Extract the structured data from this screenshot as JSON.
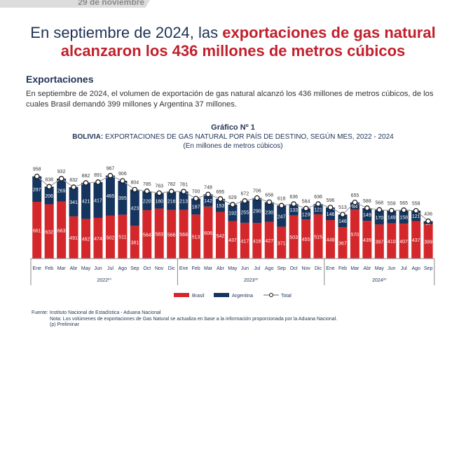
{
  "header": {
    "date": "29 de noviembre"
  },
  "title": {
    "part1": "En septiembre de 2024, las ",
    "part2": "exportaciones de gas natural",
    "part3": "alcanzaron los 436 millones de metros cúbicos"
  },
  "section": {
    "heading": "Exportaciones",
    "text": "En septiembre de 2024, el volumen de exportación de gas natural alcanzó los 436 millones de metros cúbicos, de los cuales Brasil demandó 399 millones y Argentina 37 millones."
  },
  "chart_data": {
    "type": "bar",
    "stacked": true,
    "label": "Gráfico Nº 1",
    "title_bold": "BOLIVIA:",
    "title": "EXPORTACIONES DE GAS NATURAL POR PAÍS DE DESTINO, SEGÚN MES, 2022 - 2024",
    "subtitle": "(En millones de metros cúbicos)",
    "years": [
      {
        "label": "2022",
        "sup": "(p)",
        "months": 12
      },
      {
        "label": "2023",
        "sup": "(p)",
        "months": 12
      },
      {
        "label": "2024",
        "sup": "(p)",
        "months": 9
      }
    ],
    "categories": [
      "Ene",
      "Feb",
      "Mar",
      "Abr",
      "May",
      "Jun",
      "Jul",
      "Ago",
      "Sep",
      "Oct",
      "Nov",
      "Dic",
      "Ene",
      "Feb",
      "Mar",
      "Abr",
      "May",
      "Jun",
      "Jul",
      "Ago",
      "Sep",
      "Oct",
      "Nov",
      "Dic",
      "Ene",
      "Feb",
      "Mar",
      "Abr",
      "May",
      "Jun",
      "Jul",
      "Ago",
      "Sep"
    ],
    "series": [
      {
        "name": "Brasil",
        "color": "#d4272b",
        "values": [
          661,
          632,
          663,
          491,
          462,
          474,
          502,
          511,
          381,
          564,
          583,
          566,
          568,
          513,
          606,
          542,
          437,
          417,
          416,
          427,
          371,
          503,
          455,
          515,
          449,
          367,
          570,
          439,
          397,
          410,
          407,
          437,
          399
        ]
      },
      {
        "name": "Argentina",
        "color": "#15345e",
        "values": [
          297,
          206,
          269,
          341,
          421,
          417,
          465,
          395,
          423,
          220,
          180,
          216,
          213,
          187,
          142,
          153,
          192,
          255,
          290,
          230,
          247,
          133,
          129,
          121,
          146,
          146,
          84,
          149,
          170,
          149,
          158,
          121,
          37
        ]
      },
      {
        "name": "Total",
        "type": "line",
        "values": [
          958,
          838,
          932,
          832,
          882,
          891,
          967,
          906,
          804,
          785,
          763,
          782,
          781,
          700,
          748,
          695,
          629,
          672,
          706,
          658,
          618,
          636,
          584,
          636,
          596,
          513,
          655,
          588,
          568,
          559,
          565,
          558,
          436
        ]
      }
    ],
    "legend": "bottom"
  },
  "footer": {
    "source": "Fuente: Instituto Nacional de Estadística - Aduana Nacional",
    "note": "Nota:  Los volúmenes de exportaciones de Gas Natural se actualiza en base a la información proporcionada por la Aduana Nacional.",
    "prelim": "(p) Preliminar"
  }
}
